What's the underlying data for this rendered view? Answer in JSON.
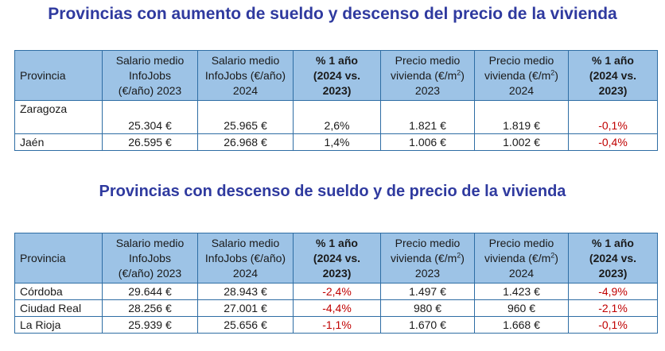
{
  "sections": [
    {
      "title": "Provincias con aumento de sueldo y descenso del precio de la vivienda",
      "rows": [
        {
          "provincia": "Zaragoza",
          "sal2023": "25.304 €",
          "sal2024": "25.965 €",
          "pct_sal": "2,6%",
          "viv2023": "1.821 €",
          "viv2024": "1.819 €",
          "pct_viv": "-0,1%"
        },
        {
          "provincia": "Jaén",
          "sal2023": "26.595 €",
          "sal2024": "26.968 €",
          "pct_sal": "1,4%",
          "viv2023": "1.006 €",
          "viv2024": "1.002 €",
          "pct_viv": "-0,4%"
        }
      ]
    },
    {
      "title": "Provincias con descenso de sueldo y de precio de la vivienda",
      "rows": [
        {
          "provincia": "Córdoba",
          "sal2023": "29.644 €",
          "sal2024": "28.943 €",
          "pct_sal": "-2,4%",
          "viv2023": "1.497 €",
          "viv2024": "1.423 €",
          "pct_viv": "-4,9%"
        },
        {
          "provincia": "Ciudad Real",
          "sal2023": "28.256 €",
          "sal2024": "27.001 €",
          "pct_sal": "-4,4%",
          "viv2023": "980 €",
          "viv2024": "960 €",
          "pct_viv": "-2,1%"
        },
        {
          "provincia": "La Rioja",
          "sal2023": "25.939 €",
          "sal2024": "25.656 €",
          "pct_sal": "-1,1%",
          "viv2023": "1.670 €",
          "viv2024": "1.668 €",
          "pct_viv": "-0,1%"
        }
      ]
    }
  ],
  "headers": {
    "provincia": "Provincia",
    "sal2023": [
      "Salario medio",
      "InfoJobs",
      "(€/año) 2023"
    ],
    "sal2024": [
      "Salario medio",
      "InfoJobs (€/año)",
      "2024"
    ],
    "pct": [
      "% 1 año",
      "(2024 vs.",
      "2023)"
    ],
    "viv2023": [
      "Precio medio",
      "vivienda (€/m",
      "2",
      ")",
      "2023"
    ],
    "viv2024": [
      "Precio medio",
      "vivienda (€/m",
      "2",
      ")",
      "2024"
    ]
  },
  "colors": {
    "title": "#2f3a9f",
    "header_bg": "#9dc3e6",
    "border": "#2e6da4",
    "negative": "#c00000"
  }
}
